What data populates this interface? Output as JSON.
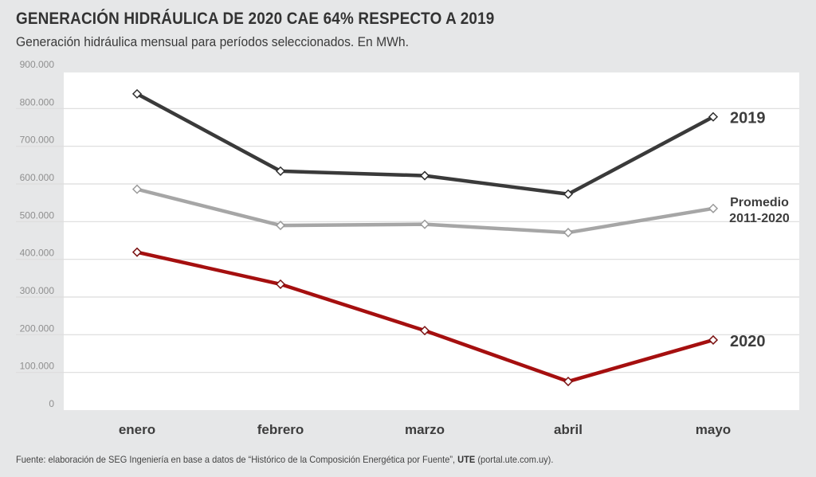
{
  "title": "GENERACIÓN HIDRÁULICA DE 2020 CAE 64% RESPECTO A 2019",
  "subtitle": "Generación hidráulica mensual para períodos seleccionados. En MWh.",
  "source": {
    "prefix": "Fuente: elaboración de SEG Ingeniería en base a datos de “Histórico de la Composición Energética por Fuente”, ",
    "bold": "UTE",
    "suffix": " (portal.ute.com.uy)."
  },
  "chart_data": {
    "type": "line",
    "title": "GENERACIÓN HIDRÁULICA DE 2020 CAE 64% RESPECTO A 2019",
    "subtitle": "Generación hidráulica mensual para períodos seleccionados. En MWh.",
    "xlabel": "",
    "ylabel": "MWh",
    "categories": [
      "enero",
      "febrero",
      "marzo",
      "abril",
      "mayo"
    ],
    "ylim": [
      0,
      900000
    ],
    "yticks": [
      0,
      100000,
      200000,
      300000,
      400000,
      500000,
      600000,
      700000,
      800000,
      900000
    ],
    "ytick_labels": [
      "0",
      "100.000",
      "200.000",
      "300.000",
      "400.000",
      "500.000",
      "600.000",
      "700.000",
      "800.000",
      "900.000"
    ],
    "grid": true,
    "legend": "inline-right",
    "series": [
      {
        "name": "2019",
        "label_lines": [
          "2019"
        ],
        "color": "#3a3a3a",
        "values": [
          839000,
          634000,
          622000,
          573000,
          778000
        ]
      },
      {
        "name": "Promedio 2011-2020",
        "label_lines": [
          "Promedio",
          "2011-2020"
        ],
        "color": "#a6a6a6",
        "values": [
          586000,
          490000,
          493000,
          471000,
          535000
        ]
      },
      {
        "name": "2020",
        "label_lines": [
          "2020"
        ],
        "color": "#a50f0f",
        "values": [
          419000,
          334000,
          211000,
          76000,
          186000
        ]
      }
    ]
  }
}
